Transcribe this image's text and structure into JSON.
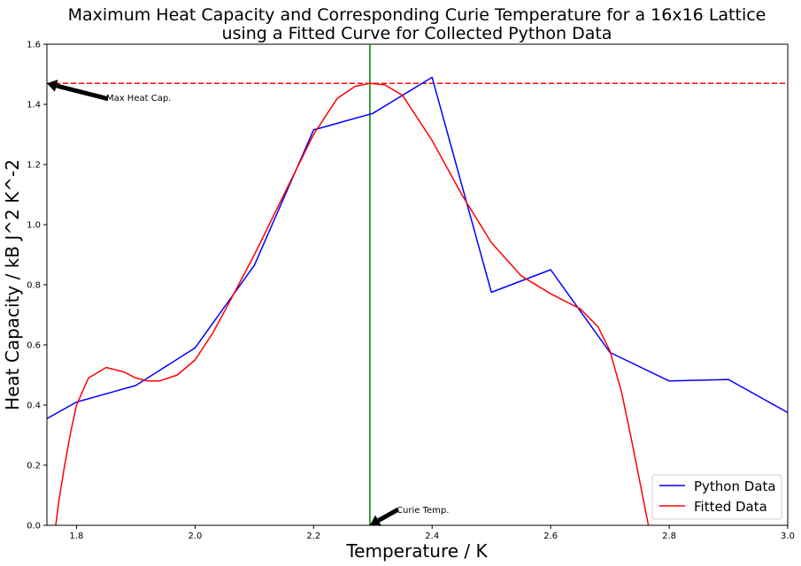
{
  "chart_data": {
    "type": "line",
    "title_lines": [
      "Maximum Heat Capacity and Corresponding Curie Temperature for a 16x16 Lattice",
      "using a Fitted Curve for Collected Python Data"
    ],
    "xlabel": "Temperature / K",
    "ylabel": "Heat Capacity / kB J^2 K^-2",
    "xlim": [
      1.75,
      3.0
    ],
    "ylim": [
      0.0,
      1.6
    ],
    "xticks": [
      1.8,
      2.0,
      2.2,
      2.4,
      2.6,
      2.8,
      3.0
    ],
    "xtick_labels": [
      "1.8",
      "2.0",
      "2.2",
      "2.4",
      "2.6",
      "2.8",
      "3.0"
    ],
    "yticks": [
      0.0,
      0.2,
      0.4,
      0.6,
      0.8,
      1.0,
      1.2,
      1.4,
      1.6
    ],
    "ytick_labels": [
      "0.0",
      "0.2",
      "0.4",
      "0.6",
      "0.8",
      "1.0",
      "1.2",
      "1.4",
      "1.6"
    ],
    "grid": false,
    "legend_position": "bottom-right",
    "series": [
      {
        "name": "Python Data",
        "color": "#0000ff",
        "x": [
          1.75,
          1.8,
          1.9,
          2.0,
          2.1,
          2.2,
          2.3,
          2.4,
          2.5,
          2.6,
          2.7,
          2.8,
          2.9,
          3.0
        ],
        "y": [
          0.355,
          0.41,
          0.465,
          0.59,
          0.865,
          1.315,
          1.37,
          1.49,
          0.775,
          0.85,
          0.575,
          0.48,
          0.485,
          0.375
        ]
      },
      {
        "name": "Fitted Data",
        "color": "#ff0000",
        "x": [
          1.765,
          1.77,
          1.78,
          1.79,
          1.8,
          1.82,
          1.85,
          1.88,
          1.9,
          1.92,
          1.94,
          1.97,
          2.0,
          2.03,
          2.06,
          2.1,
          2.15,
          2.2,
          2.24,
          2.27,
          2.295,
          2.32,
          2.35,
          2.4,
          2.45,
          2.5,
          2.55,
          2.6,
          2.65,
          2.68,
          2.7,
          2.72,
          2.74,
          2.755,
          2.765
        ],
        "y": [
          0.0,
          0.08,
          0.2,
          0.31,
          0.4,
          0.49,
          0.525,
          0.51,
          0.49,
          0.48,
          0.48,
          0.5,
          0.55,
          0.64,
          0.75,
          0.9,
          1.1,
          1.3,
          1.42,
          1.46,
          1.47,
          1.465,
          1.43,
          1.28,
          1.1,
          0.94,
          0.83,
          0.77,
          0.72,
          0.66,
          0.58,
          0.44,
          0.25,
          0.1,
          0.0
        ]
      }
    ],
    "reference_lines": [
      {
        "name": "max-heat-capacity-line",
        "orientation": "horizontal",
        "value": 1.47,
        "color": "#ff0000",
        "style": "dashed"
      },
      {
        "name": "curie-temperature-line",
        "orientation": "vertical",
        "value": 2.295,
        "color": "#008000",
        "style": "solid"
      }
    ],
    "annotations": [
      {
        "name": "max-heat-cap-annotation",
        "text": "Max Heat Cap.",
        "text_xy": [
          1.85,
          1.42
        ],
        "point_xy": [
          1.75,
          1.47
        ]
      },
      {
        "name": "curie-temp-annotation",
        "text": "Curie Temp.",
        "text_xy": [
          2.34,
          0.05
        ],
        "point_xy": [
          2.295,
          0.0
        ]
      }
    ]
  }
}
